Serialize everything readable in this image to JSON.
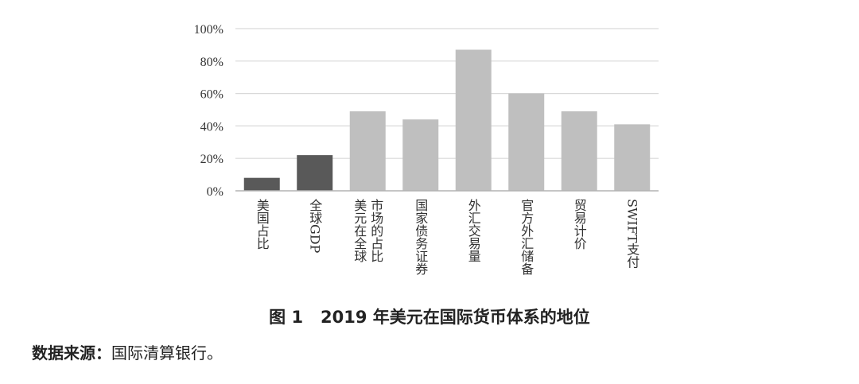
{
  "chart_data": {
    "type": "bar",
    "categories": [
      "美国占比",
      "全球GDP",
      "美元在全球市场的占比",
      "国家债务证券",
      "外汇交易量",
      "官方外汇储备",
      "贸易计价",
      "SWIFT支付"
    ],
    "category_lines": [
      [
        "美国占比"
      ],
      [
        "全球GDP"
      ],
      [
        "美元在全球",
        "市场的占比"
      ],
      [
        "国家债务证券"
      ],
      [
        "外汇交易量"
      ],
      [
        "官方外汇储备"
      ],
      [
        "贸易计价"
      ],
      [
        "SWIFT支付"
      ]
    ],
    "values": [
      8,
      22,
      49,
      44,
      87,
      60,
      49,
      41
    ],
    "bar_colors": [
      "#595959",
      "#595959",
      "#bfbfbf",
      "#bfbfbf",
      "#bfbfbf",
      "#bfbfbf",
      "#bfbfbf",
      "#bfbfbf"
    ],
    "ylim": [
      0,
      100
    ],
    "yticks": [
      0,
      20,
      40,
      60,
      80,
      100
    ],
    "ytick_labels": [
      "0%",
      "20%",
      "40%",
      "60%",
      "80%",
      "100%"
    ],
    "grid": true,
    "xlabel": "",
    "ylabel": ""
  },
  "caption": {
    "figure_no": "图 1",
    "title": "2019 年美元在国际货币体系的地位"
  },
  "source": {
    "label": "数据来源：",
    "text": "国际清算银行。"
  }
}
